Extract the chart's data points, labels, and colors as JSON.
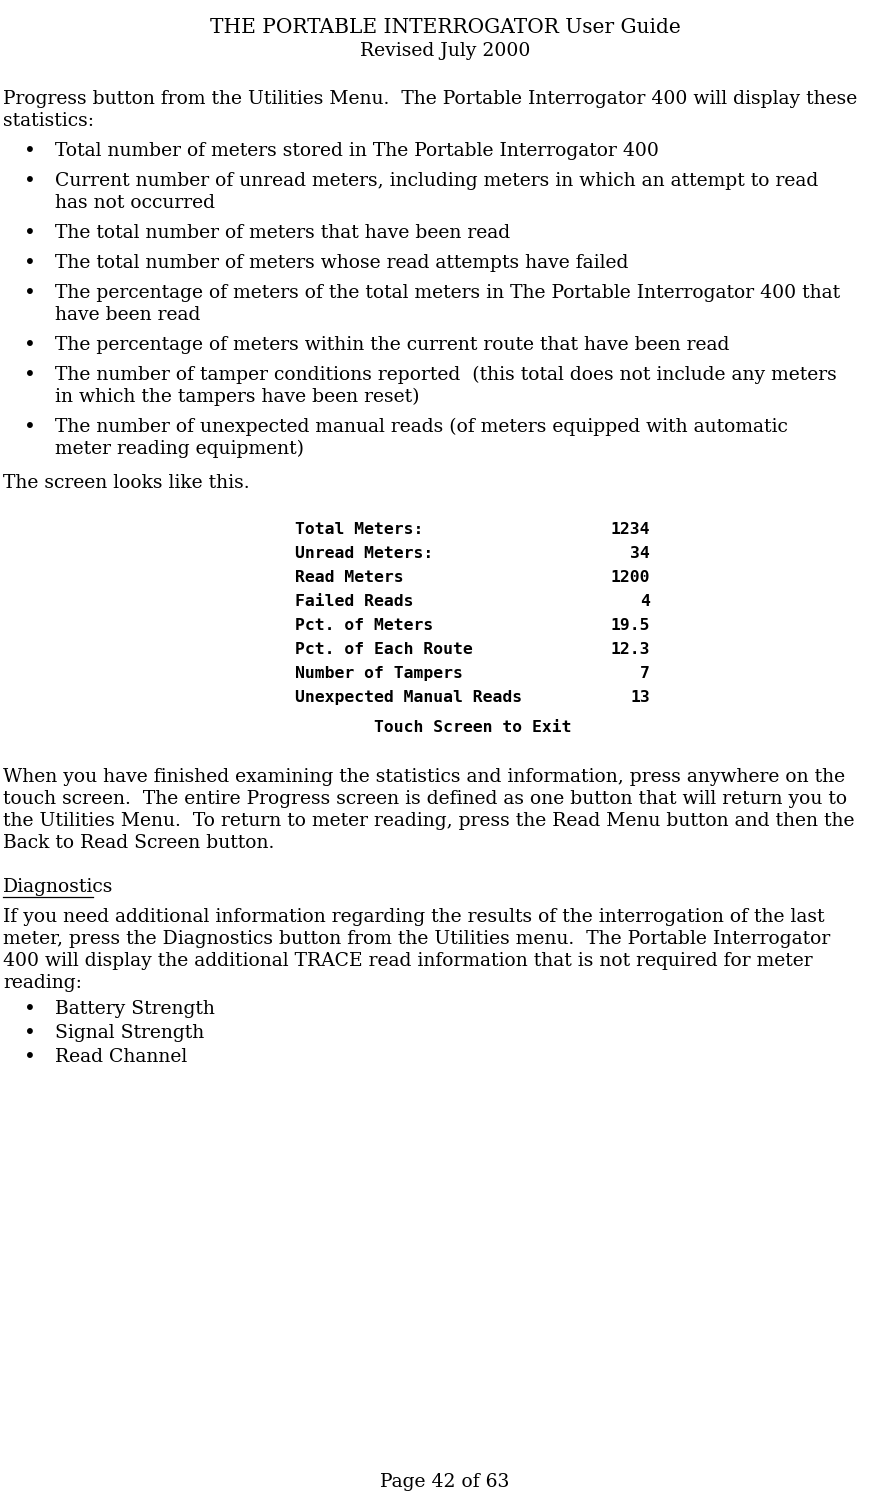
{
  "title_line1": "THE PORTABLE INTERROGATOR User Guide",
  "title_line2": "Revised July 2000",
  "background_color": "#ffffff",
  "text_color": "#000000",
  "intro_text_line1": "Progress button from the Utilities Menu.  The Portable Interrogator 400 will display these",
  "intro_text_line2": "statistics:",
  "bullets": [
    "Total number of meters stored in The Portable Interrogator 400",
    "Current number of unread meters, including meters in which an attempt to read\nhas not occurred",
    "The total number of meters that have been read",
    "The total number of meters whose read attempts have failed",
    "The percentage of meters of the total meters in The Portable Interrogator 400 that\nhave been read",
    "The percentage of meters within the current route that have been read",
    "The number of tamper conditions reported  (this total does not include any meters\nin which the tampers have been reset)",
    "The number of unexpected manual reads (of meters equipped with automatic\nmeter reading equipment)"
  ],
  "screen_label": "The screen looks like this.",
  "screen_rows": [
    [
      "Total Meters:",
      "1234"
    ],
    [
      "Unread Meters:",
      "  34"
    ],
    [
      "Read Meters",
      "1200"
    ],
    [
      "Failed Reads",
      "   4"
    ],
    [
      "Pct. of Meters",
      "19.5"
    ],
    [
      "Pct. of Each Route",
      "12.3"
    ],
    [
      "Number of Tampers",
      "   7"
    ],
    [
      "Unexpected Manual Reads",
      "13"
    ]
  ],
  "screen_footer": "Touch Screen to Exit",
  "after_screen_text_line1": "When you have finished examining the statistics and information, press anywhere on the",
  "after_screen_text_line2": "touch screen.  The entire Progress screen is defined as one button that will return you to",
  "after_screen_text_line3": "the Utilities Menu.  To return to meter reading, press the Read Menu button and then the",
  "after_screen_text_line4": "Back to Read Screen button.",
  "diagnostics_heading": "Diagnostics",
  "diagnostics_text_line1": "If you need additional information regarding the results of the interrogation of the last",
  "diagnostics_text_line2": "meter, press the Diagnostics button from the Utilities menu.  The Portable Interrogator",
  "diagnostics_text_line3": "400 will display the additional TRACE read information that is not required for meter",
  "diagnostics_text_line4": "reading:",
  "diagnostics_bullets": [
    "Battery Strength",
    "Signal Strength",
    "Read Channel"
  ],
  "page_footer": "Page 42 of 63",
  "body_fontsize": 13.5,
  "title_fontsize": 14.5,
  "screen_fontsize": 11.8
}
